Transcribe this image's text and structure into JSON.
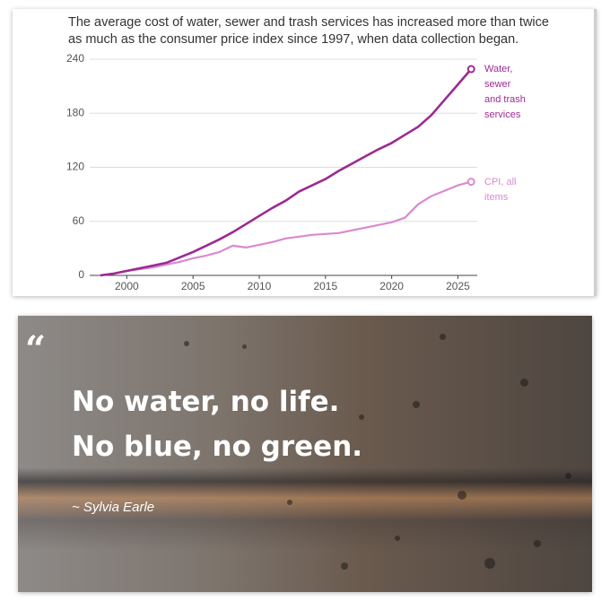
{
  "chart_data": {
    "type": "line",
    "subtitle": "The average cost of water, sewer and trash services has increased more than twice as much as the consumer price index since 1997, when data collection began.",
    "x": [
      1998,
      1999,
      2000,
      2001,
      2002,
      2003,
      2004,
      2005,
      2006,
      2007,
      2008,
      2009,
      2010,
      2011,
      2012,
      2013,
      2014,
      2015,
      2016,
      2017,
      2018,
      2019,
      2020,
      2021,
      2022,
      2023,
      2024,
      2025,
      2026
    ],
    "series": [
      {
        "name": "Water, sewer and trash services",
        "color": "#9c2a93",
        "values": [
          0,
          2,
          5,
          8,
          11,
          14,
          20,
          26,
          33,
          40,
          48,
          57,
          66,
          75,
          83,
          93,
          100,
          107,
          116,
          124,
          132,
          140,
          147,
          156,
          165,
          178,
          195,
          212,
          229
        ]
      },
      {
        "name": "CPI, all items",
        "color": "#d98ad1",
        "values": [
          0,
          2,
          5,
          7,
          9,
          12,
          15,
          19,
          22,
          26,
          33,
          31,
          34,
          37,
          41,
          43,
          45,
          46,
          47,
          50,
          53,
          56,
          59,
          64,
          79,
          88,
          94,
          100,
          104
        ]
      }
    ],
    "xlim": [
      1997.2,
      2027
    ],
    "xticks": [
      2000,
      2005,
      2010,
      2015,
      2020,
      2025
    ],
    "ylim": [
      0,
      240
    ],
    "yticks": [
      0,
      60,
      120,
      180,
      240
    ],
    "grid": true
  },
  "quote": {
    "mark": "“",
    "lines": [
      "No water, no life.",
      "No blue, no green."
    ],
    "author": "~ Sylvia Earle"
  }
}
